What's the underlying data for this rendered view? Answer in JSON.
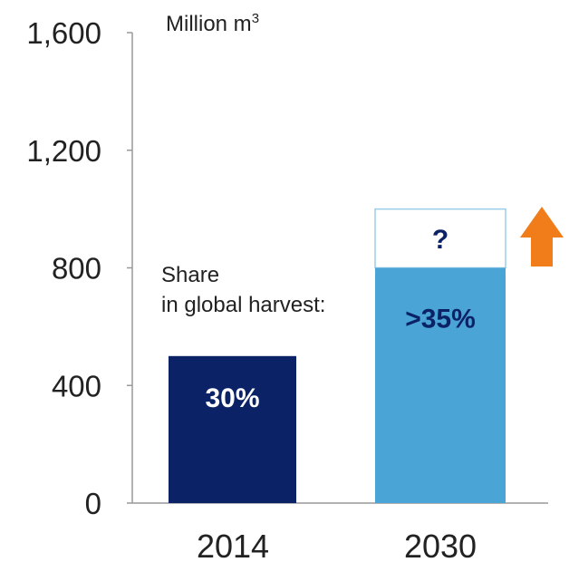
{
  "chart_data": {
    "type": "bar",
    "unit_label": "Million m",
    "unit_superscript": "3",
    "ylim": [
      0,
      1600
    ],
    "yticks": [
      "0",
      "400",
      "800",
      "1,200",
      "1,600"
    ],
    "ytick_values": [
      0,
      400,
      800,
      1200,
      1600
    ],
    "categories": [
      "2014",
      "2030"
    ],
    "bars": [
      {
        "category": "2014",
        "value": 500,
        "label": ">30%",
        "label_display": "30%",
        "color": "#0b2266",
        "label_color": "#ffffff"
      },
      {
        "category": "2030",
        "value": 800,
        "label": ">35%",
        "color": "#4aa4d6",
        "label_color": "#0b2266",
        "uncertain_extension": {
          "value": 1000,
          "label": "?"
        }
      }
    ],
    "annotation_lines": [
      "Share",
      "in global harvest:"
    ],
    "trend_arrow": {
      "direction": "up",
      "color": "#f07d1a"
    },
    "grid": false,
    "legend": "none"
  }
}
